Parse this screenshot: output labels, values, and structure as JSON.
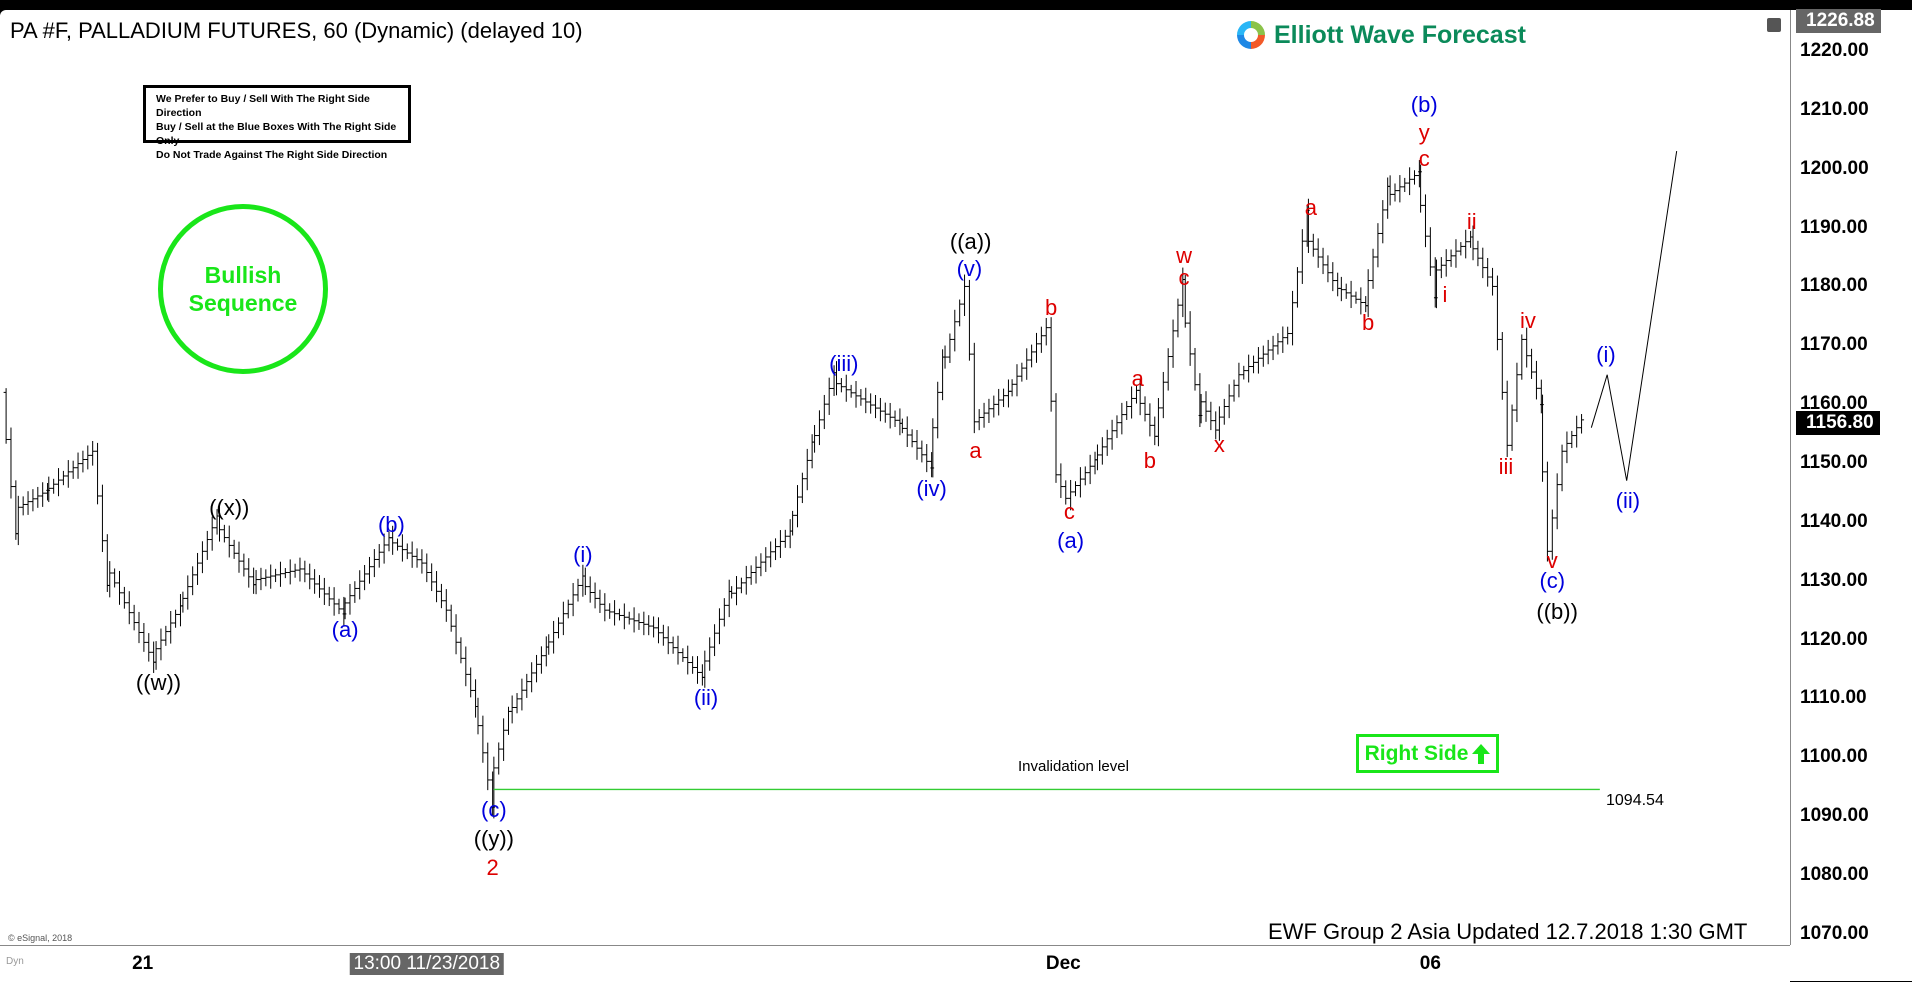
{
  "header": {
    "title": "PA #F, PALLADIUM FUTURES, 60 (Dynamic) (delayed 10)",
    "logo_text": "Elliott Wave Forecast"
  },
  "notice": {
    "lines": [
      "We Prefer to Buy / Sell With The Right Side Direction",
      "Buy / Sell at the Blue Boxes With The Right Side Only",
      "Do Not Trade Against The Right Side Direction"
    ]
  },
  "badge": {
    "line1": "Bullish",
    "line2": "Sequence"
  },
  "right_side": {
    "label": "Right Side",
    "icon": "arrow-up-icon"
  },
  "footer": {
    "updated": "EWF Group 2 Asia Updated 12.7.2018 1:30 GMT",
    "copyright": "© eSignal, 2018",
    "dyn": "Dyn"
  },
  "colors": {
    "wave_blue": "#0000dd",
    "wave_red": "#dd0000",
    "wave_black": "#000000",
    "invalidation": "#33cc33",
    "bullish": "#19e619"
  },
  "chart_data": {
    "type": "ohlc",
    "title": "PA #F, PALLADIUM FUTURES, 60 (Dynamic) (delayed 10)",
    "ylim": [
      1066,
      1229
    ],
    "y_ticks": [
      "1220.00",
      "1210.00",
      "1200.00",
      "1190.00",
      "1180.00",
      "1170.00",
      "1160.00",
      "1150.00",
      "1140.00",
      "1130.00",
      "1120.00",
      "1110.00",
      "1100.00",
      "1090.00",
      "1080.00",
      "1070.00"
    ],
    "x_ticks": [
      {
        "label": "21",
        "bar": 117
      },
      {
        "label": "13:00 11/23/2018",
        "bar": 350,
        "highlight": true
      },
      {
        "label": "Dec",
        "bar": 872
      },
      {
        "label": "06",
        "bar": 1173
      }
    ],
    "last_price": "1156.80",
    "top_price": "1226.88",
    "pivots": [
      [
        5,
        1162
      ],
      [
        15,
        1142
      ],
      [
        40,
        1145
      ],
      [
        80,
        1152
      ],
      [
        90,
        1133
      ],
      [
        128,
        1117
      ],
      [
        150,
        1125
      ],
      [
        180,
        1140
      ],
      [
        210,
        1130
      ],
      [
        250,
        1132
      ],
      [
        283,
        1125
      ],
      [
        322,
        1137
      ],
      [
        350,
        1133
      ],
      [
        370,
        1125
      ],
      [
        392,
        1110
      ],
      [
        405,
        1095
      ],
      [
        420,
        1107
      ],
      [
        450,
        1118
      ],
      [
        480,
        1130
      ],
      [
        500,
        1125
      ],
      [
        540,
        1122
      ],
      [
        578,
        1114
      ],
      [
        600,
        1127
      ],
      [
        650,
        1138
      ],
      [
        668,
        1152
      ],
      [
        686,
        1164
      ],
      [
        740,
        1157
      ],
      [
        765,
        1150
      ],
      [
        775,
        1165
      ],
      [
        795,
        1180
      ],
      [
        803,
        1157
      ],
      [
        830,
        1162
      ],
      [
        862,
        1173
      ],
      [
        870,
        1148
      ],
      [
        878,
        1144
      ],
      [
        900,
        1150
      ],
      [
        935,
        1162
      ],
      [
        950,
        1155
      ],
      [
        972,
        1179
      ],
      [
        985,
        1162
      ],
      [
        1000,
        1156
      ],
      [
        1020,
        1165
      ],
      [
        1060,
        1172
      ],
      [
        1073,
        1189
      ],
      [
        1100,
        1180
      ],
      [
        1122,
        1177
      ],
      [
        1140,
        1195
      ],
      [
        1165,
        1199
      ],
      [
        1178,
        1182
      ],
      [
        1208,
        1188
      ],
      [
        1228,
        1180
      ],
      [
        1240,
        1153
      ],
      [
        1252,
        1171
      ],
      [
        1265,
        1162
      ],
      [
        1273,
        1135
      ],
      [
        1285,
        1152
      ],
      [
        1300,
        1157
      ]
    ],
    "projection": [
      [
        1305,
        1156
      ],
      [
        1318,
        1165
      ],
      [
        1334,
        1147
      ],
      [
        1375,
        1203
      ]
    ],
    "invalidation": {
      "label": "Invalidation level",
      "value": "1094.54",
      "price": 1094.54,
      "from_bar": 405,
      "to_bar": 1312
    },
    "wave_labels": [
      {
        "text": "((w))",
        "bar": 130,
        "price": 1112.7,
        "color": "black"
      },
      {
        "text": "((x))",
        "bar": 188,
        "price": 1142.3,
        "color": "black"
      },
      {
        "text": "(a)",
        "bar": 283,
        "price": 1121.6,
        "color": "blue"
      },
      {
        "text": "(b)",
        "bar": 321,
        "price": 1139.4,
        "color": "blue"
      },
      {
        "text": "(c)",
        "bar": 405,
        "price": 1091.1,
        "color": "blue"
      },
      {
        "text": "((y))",
        "bar": 405,
        "price": 1086.2,
        "color": "black"
      },
      {
        "text": "2",
        "bar": 404,
        "price": 1081.2,
        "color": "red"
      },
      {
        "text": "(i)",
        "bar": 478,
        "price": 1134.3,
        "color": "blue"
      },
      {
        "text": "(ii)",
        "bar": 579,
        "price": 1110,
        "color": "blue"
      },
      {
        "text": "(iii)",
        "bar": 692,
        "price": 1166.8,
        "color": "blue"
      },
      {
        "text": "(iv)",
        "bar": 764,
        "price": 1145.6,
        "color": "blue"
      },
      {
        "text": "(v)",
        "bar": 795,
        "price": 1182.9,
        "color": "blue"
      },
      {
        "text": "((a))",
        "bar": 796,
        "price": 1187.5,
        "color": "black"
      },
      {
        "text": "a",
        "bar": 800,
        "price": 1152,
        "color": "red"
      },
      {
        "text": "b",
        "bar": 862,
        "price": 1176.3,
        "color": "red"
      },
      {
        "text": "c",
        "bar": 877,
        "price": 1141.7,
        "color": "red"
      },
      {
        "text": "(a)",
        "bar": 878,
        "price": 1136.7,
        "color": "blue"
      },
      {
        "text": "a",
        "bar": 933,
        "price": 1164.3,
        "color": "red"
      },
      {
        "text": "b",
        "bar": 943,
        "price": 1150.4,
        "color": "red"
      },
      {
        "text": "w",
        "bar": 971,
        "price": 1185.2,
        "color": "red"
      },
      {
        "text": "c",
        "bar": 971,
        "price": 1181.4,
        "color": "red"
      },
      {
        "text": "x",
        "bar": 1000,
        "price": 1153,
        "color": "red"
      },
      {
        "text": "a",
        "bar": 1075,
        "price": 1193.3,
        "color": "red"
      },
      {
        "text": "b",
        "bar": 1122,
        "price": 1173.8,
        "color": "red"
      },
      {
        "text": "(b)",
        "bar": 1168,
        "price": 1210.9,
        "color": "blue"
      },
      {
        "text": "y",
        "bar": 1168,
        "price": 1206.1,
        "color": "red"
      },
      {
        "text": "c",
        "bar": 1168,
        "price": 1201.6,
        "color": "red"
      },
      {
        "text": "ii",
        "bar": 1207,
        "price": 1191,
        "color": "red"
      },
      {
        "text": "i",
        "bar": 1185,
        "price": 1178.6,
        "color": "red"
      },
      {
        "text": "iii",
        "bar": 1235,
        "price": 1149.4,
        "color": "red"
      },
      {
        "text": "iv",
        "bar": 1253,
        "price": 1174.2,
        "color": "red"
      },
      {
        "text": "v",
        "bar": 1273,
        "price": 1133.4,
        "color": "red"
      },
      {
        "text": "(c)",
        "bar": 1273,
        "price": 1129.9,
        "color": "blue"
      },
      {
        "text": "((b))",
        "bar": 1277,
        "price": 1124.7,
        "color": "black"
      },
      {
        "text": "(i)",
        "bar": 1317,
        "price": 1168.3,
        "color": "blue"
      },
      {
        "text": "(ii)",
        "bar": 1335,
        "price": 1143.6,
        "color": "blue"
      }
    ]
  }
}
